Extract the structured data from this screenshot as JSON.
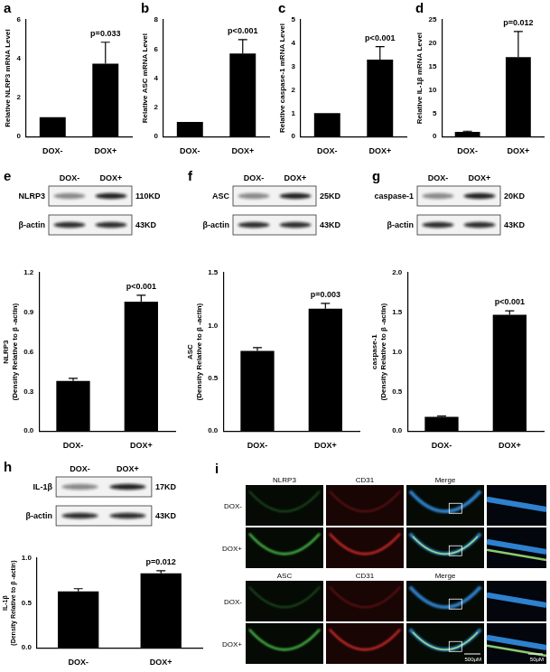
{
  "chart_data": [
    {
      "type": "bar",
      "title": "a",
      "y_label": "Relative NLRP3 mRNA Level",
      "categories": [
        "DOX-",
        "DOX+"
      ],
      "values": [
        1,
        3.75
      ],
      "errors": [
        0,
        1.1
      ],
      "color": "#000000",
      "ylim": [
        0,
        6
      ],
      "yticks": [
        0,
        2,
        4,
        6
      ],
      "grid": false,
      "annotations": [
        {
          "text": "p=0.033",
          "category": "DOX+"
        }
      ]
    },
    {
      "type": "bar",
      "title": "b",
      "y_label": "Relative ASC mRNA Level",
      "categories": [
        "DOX-",
        "DOX+"
      ],
      "values": [
        1,
        5.7
      ],
      "errors": [
        0,
        0.95
      ],
      "color": "#000000",
      "ylim": [
        0,
        8
      ],
      "yticks": [
        0,
        2,
        4,
        6,
        8
      ],
      "grid": false,
      "annotations": [
        {
          "text": "p<0.001",
          "category": "DOX+"
        }
      ]
    },
    {
      "type": "bar",
      "title": "c",
      "y_label": "Relative caspase-1 mRNA Level",
      "categories": [
        "DOX-",
        "DOX+"
      ],
      "values": [
        1,
        3.3
      ],
      "errors": [
        0,
        0.55
      ],
      "color": "#000000",
      "ylim": [
        0,
        5
      ],
      "yticks": [
        0,
        1,
        2,
        3,
        4,
        5
      ],
      "grid": false,
      "annotations": [
        {
          "text": "p<0.001",
          "category": "DOX+"
        }
      ]
    },
    {
      "type": "bar",
      "title": "d",
      "y_label": "Relative IL-1β mRNA Level",
      "categories": [
        "DOX-",
        "DOX+"
      ],
      "values": [
        1,
        17
      ],
      "errors": [
        0.15,
        5.5
      ],
      "color": "#000000",
      "ylim": [
        0,
        25
      ],
      "yticks": [
        0,
        5,
        10,
        15,
        20,
        25
      ],
      "grid": false,
      "annotations": [
        {
          "text": "p=0.012",
          "category": "DOX+"
        }
      ]
    },
    {
      "type": "bar",
      "title": "e",
      "y_label": [
        "NLRP3",
        "(Density Relative to β -actin)"
      ],
      "categories": [
        "DOX-",
        "DOX+"
      ],
      "values": [
        0.38,
        0.98
      ],
      "errors": [
        0.02,
        0.05
      ],
      "color": "#000000",
      "ylim": [
        0,
        1.2
      ],
      "yticks": [
        {
          "value": 0,
          "label": "0.0"
        },
        0.3,
        0.6,
        0.9,
        1.2
      ],
      "grid": false,
      "annotations": [
        {
          "text": "p<0.001",
          "category": "DOX+"
        }
      ],
      "blot": {
        "lanes": [
          "DOX-",
          "DOX+"
        ],
        "rows": [
          {
            "protein": "NLRP3",
            "size": "110KD"
          },
          {
            "protein": "β-actin",
            "size": "43KD"
          }
        ]
      }
    },
    {
      "type": "bar",
      "title": "f",
      "y_label": [
        "ASC",
        "(Density Relative to β -actin)"
      ],
      "categories": [
        "DOX-",
        "DOX+"
      ],
      "values": [
        0.76,
        1.16
      ],
      "errors": [
        0.03,
        0.05
      ],
      "color": "#000000",
      "ylim": [
        0,
        1.5
      ],
      "yticks": [
        {
          "value": 0,
          "label": "0.0"
        },
        0.5,
        {
          "value": 1,
          "label": "1.0"
        },
        1.5
      ],
      "grid": false,
      "annotations": [
        {
          "text": "p=0.003",
          "category": "DOX+"
        }
      ],
      "blot": {
        "lanes": [
          "DOX-",
          "DOX+"
        ],
        "rows": [
          {
            "protein": "ASC",
            "size": "25KD"
          },
          {
            "protein": "β-actin",
            "size": "43KD"
          }
        ]
      }
    },
    {
      "type": "bar",
      "title": "g",
      "y_label": [
        "caspase-1",
        "(Density Relative to β -actin)"
      ],
      "categories": [
        "DOX-",
        "DOX+"
      ],
      "values": [
        0.18,
        1.47
      ],
      "errors": [
        0.01,
        0.05
      ],
      "color": "#000000",
      "ylim": [
        0,
        2
      ],
      "yticks": [
        {
          "value": 0,
          "label": "0.0"
        },
        0.5,
        {
          "value": 1,
          "label": "1.0"
        },
        1.5,
        {
          "value": 2,
          "label": "2.0"
        }
      ],
      "grid": false,
      "annotations": [
        {
          "text": "p<0.001",
          "category": "DOX+"
        }
      ],
      "blot": {
        "lanes": [
          "DOX-",
          "DOX+"
        ],
        "rows": [
          {
            "protein": "caspase-1",
            "size": "20KD"
          },
          {
            "protein": "β-actin",
            "size": "43KD"
          }
        ]
      }
    },
    {
      "type": "bar",
      "title": "h",
      "y_label": [
        "IL-1β",
        "(Density Relative to β -actin)"
      ],
      "categories": [
        "DOX-",
        "DOX+"
      ],
      "values": [
        0.63,
        0.83
      ],
      "errors": [
        0.03,
        0.03
      ],
      "color": "#000000",
      "ylim": [
        0,
        1
      ],
      "yticks": [
        {
          "value": 0,
          "label": "0.0"
        },
        0.5,
        {
          "value": 1,
          "label": "1.0"
        }
      ],
      "grid": false,
      "annotations": [
        {
          "text": "p=0.012",
          "category": "DOX+"
        }
      ],
      "blot": {
        "lanes": [
          "DOX-",
          "DOX+"
        ],
        "rows": [
          {
            "protein": "IL-1β",
            "size": "17KD"
          },
          {
            "protein": "β-actin",
            "size": "43KD"
          }
        ]
      }
    }
  ],
  "image_panel": {
    "title": "i",
    "groups": [
      {
        "channels": [
          "NLRP3",
          "CD31",
          "Merge"
        ],
        "rows": [
          "DOX-",
          "DOX+"
        ]
      },
      {
        "channels": [
          "ASC",
          "CD31",
          "Merge"
        ],
        "rows": [
          "DOX-",
          "DOX+"
        ]
      }
    ],
    "scale_bars": [
      "500μM",
      "50μM"
    ]
  }
}
